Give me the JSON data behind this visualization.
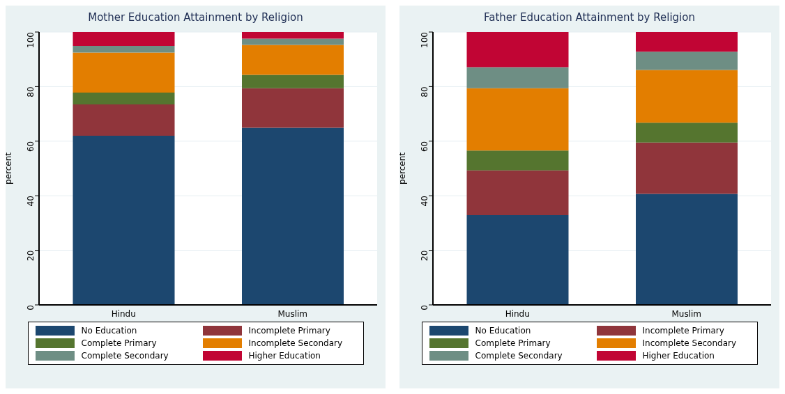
{
  "chart_data": [
    {
      "type": "bar",
      "title": "Mother Education Attainment by Religion",
      "ylabel": "percent",
      "categories": [
        "Hindu",
        "Muslim"
      ],
      "stacked": true,
      "ylim": [
        0,
        100
      ],
      "yticks": [
        0,
        20,
        40,
        60,
        80,
        100
      ],
      "grid": "y",
      "legend": "bottom",
      "series": [
        {
          "name": "No Education",
          "color": "#1c476f",
          "values": [
            62,
            64.9
          ]
        },
        {
          "name": "Incomplete Primary",
          "color": "#90353b",
          "values": [
            11.5,
            14.5
          ]
        },
        {
          "name": "Complete Primary",
          "color": "#55752f",
          "values": [
            4.3,
            4.9
          ]
        },
        {
          "name": "Incomplete Secondary",
          "color": "#e37e00",
          "values": [
            14.7,
            11.0
          ]
        },
        {
          "name": "Complete Secondary",
          "color": "#6e8e84",
          "values": [
            2.4,
            2.3
          ]
        },
        {
          "name": "Higher Education",
          "color": "#c10534",
          "values": [
            5.1,
            2.4
          ]
        }
      ]
    },
    {
      "type": "bar",
      "title": "Father Education Attainment by Religion",
      "ylabel": "percent",
      "categories": [
        "Hindu",
        "Muslim"
      ],
      "stacked": true,
      "ylim": [
        0,
        100
      ],
      "yticks": [
        0,
        20,
        40,
        60,
        80,
        100
      ],
      "grid": "y",
      "legend": "bottom",
      "series": [
        {
          "name": "No Education",
          "color": "#1c476f",
          "values": [
            32.9,
            40.7
          ]
        },
        {
          "name": "Incomplete Primary",
          "color": "#90353b",
          "values": [
            16.4,
            18.8
          ]
        },
        {
          "name": "Complete Primary",
          "color": "#55752f",
          "values": [
            7.3,
            7.3
          ]
        },
        {
          "name": "Incomplete Secondary",
          "color": "#e37e00",
          "values": [
            22.8,
            19.3
          ]
        },
        {
          "name": "Complete Secondary",
          "color": "#6e8e84",
          "values": [
            7.7,
            6.7
          ]
        },
        {
          "name": "Higher Education",
          "color": "#c10534",
          "values": [
            12.9,
            7.2
          ]
        }
      ]
    }
  ]
}
